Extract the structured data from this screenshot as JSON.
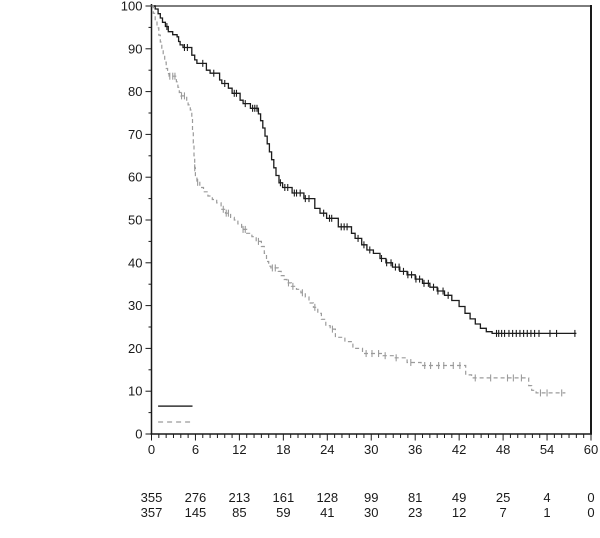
{
  "chart_data": {
    "type": "line",
    "subtype": "kaplan-meier-step-curves",
    "title": "",
    "xlabel": "",
    "ylabel": "",
    "x_axis": {
      "min": 0,
      "max": 60,
      "major_ticks": [
        0,
        6,
        12,
        18,
        24,
        30,
        36,
        42,
        48,
        54,
        60
      ],
      "tick_labels": [
        "0",
        "6",
        "12",
        "18",
        "24",
        "30",
        "36",
        "42",
        "48",
        "54",
        "60"
      ],
      "minor_tick_step": 1
    },
    "y_axis": {
      "min": 0,
      "max": 100,
      "major_ticks": [
        0,
        10,
        20,
        30,
        40,
        50,
        60,
        70,
        80,
        90,
        100
      ],
      "tick_labels": [
        "0",
        "10",
        "20",
        "30",
        "40",
        "50",
        "60",
        "70",
        "80",
        "90",
        "100"
      ],
      "minor_tick_step": 5
    },
    "grid": false,
    "legend": {
      "position": "bottom-left-inside",
      "entries": [
        {
          "series": "series-1",
          "line_style": "solid",
          "color": "#333333"
        },
        {
          "series": "series-2",
          "line_style": "dashed",
          "color": "#9b9b9b"
        }
      ]
    },
    "series": [
      {
        "name": "series-1",
        "line_style": "solid",
        "color": "#1c1c1c",
        "points": [
          [
            0,
            100
          ],
          [
            0.5,
            99.3
          ],
          [
            0.9,
            98.2
          ],
          [
            1.2,
            97.2
          ],
          [
            1.5,
            96.2
          ],
          [
            1.9,
            95.2
          ],
          [
            2.3,
            94.0
          ],
          [
            2.9,
            93.3
          ],
          [
            3.5,
            92.8
          ],
          [
            3.7,
            91.7
          ],
          [
            3.9,
            90.9
          ],
          [
            4.3,
            90.3
          ],
          [
            5.5,
            88.5
          ],
          [
            5.9,
            87.4
          ],
          [
            6.2,
            86.6
          ],
          [
            7.5,
            85.0
          ],
          [
            8.0,
            84.3
          ],
          [
            9.3,
            82.7
          ],
          [
            9.6,
            81.9
          ],
          [
            10.5,
            80.8
          ],
          [
            11.0,
            79.6
          ],
          [
            12.1,
            78.0
          ],
          [
            12.5,
            77.2
          ],
          [
            13.5,
            76.1
          ],
          [
            14.6,
            74.8
          ],
          [
            14.9,
            73.2
          ],
          [
            15.2,
            71.5
          ],
          [
            15.5,
            69.6
          ],
          [
            15.8,
            67.8
          ],
          [
            16.1,
            65.9
          ],
          [
            16.4,
            64.1
          ],
          [
            16.7,
            62.2
          ],
          [
            17.0,
            60.4
          ],
          [
            17.4,
            58.7
          ],
          [
            17.9,
            57.6
          ],
          [
            19.2,
            56.3
          ],
          [
            20.8,
            55.0
          ],
          [
            22.3,
            52.7
          ],
          [
            23.0,
            51.6
          ],
          [
            23.9,
            50.4
          ],
          [
            25.5,
            48.4
          ],
          [
            27.3,
            46.9
          ],
          [
            27.8,
            45.7
          ],
          [
            28.7,
            44.2
          ],
          [
            29.4,
            43.0
          ],
          [
            30.3,
            42.2
          ],
          [
            31.2,
            41.0
          ],
          [
            32.0,
            40.0
          ],
          [
            32.9,
            39.0
          ],
          [
            33.9,
            38.0
          ],
          [
            34.9,
            37.2
          ],
          [
            36.0,
            36.2
          ],
          [
            37.0,
            35.2
          ],
          [
            38.0,
            34.3
          ],
          [
            39.0,
            33.4
          ],
          [
            40.0,
            32.4
          ],
          [
            41.0,
            31.2
          ],
          [
            42.0,
            29.8
          ],
          [
            42.8,
            28.2
          ],
          [
            43.5,
            26.9
          ],
          [
            44.2,
            25.7
          ],
          [
            44.9,
            24.7
          ],
          [
            45.7,
            23.9
          ],
          [
            46.5,
            23.5
          ],
          [
            58.0,
            23.5
          ]
        ],
        "censor_times": [
          2.1,
          4.5,
          4.9,
          7.0,
          8.5,
          10.0,
          11.3,
          11.6,
          12.8,
          13.8,
          14.1,
          14.4,
          17.6,
          18.2,
          18.6,
          19.5,
          19.8,
          20.3,
          21.0,
          21.5,
          23.5,
          24.3,
          24.6,
          25.9,
          26.3,
          26.7,
          28.2,
          29.0,
          29.8,
          31.4,
          32.1,
          32.7,
          33.3,
          33.8,
          34.4,
          35.0,
          35.5,
          36.1,
          36.6,
          37.2,
          37.8,
          38.5,
          39.1,
          39.8,
          40.5,
          47.1,
          47.4,
          47.8,
          48.2,
          48.8,
          49.3,
          49.8,
          50.3,
          50.8,
          51.3,
          51.8,
          52.3,
          52.9,
          54.4,
          55.3,
          57.8
        ]
      },
      {
        "name": "series-2",
        "line_style": "dashed",
        "color": "#9b9b9b",
        "points": [
          [
            0,
            100
          ],
          [
            0.25,
            98.3
          ],
          [
            0.5,
            96.6
          ],
          [
            0.75,
            94.9
          ],
          [
            1.0,
            93.2
          ],
          [
            1.2,
            91.6
          ],
          [
            1.4,
            90.0
          ],
          [
            1.6,
            88.5
          ],
          [
            1.8,
            86.9
          ],
          [
            2.0,
            85.4
          ],
          [
            2.2,
            84.2
          ],
          [
            2.4,
            83.6
          ],
          [
            3.4,
            82.3
          ],
          [
            3.6,
            81.0
          ],
          [
            3.8,
            79.8
          ],
          [
            4.0,
            79.0
          ],
          [
            4.8,
            77.6
          ],
          [
            5.0,
            76.9
          ],
          [
            5.3,
            75.7
          ],
          [
            5.5,
            73.8
          ],
          [
            5.6,
            71.0
          ],
          [
            5.7,
            68.0
          ],
          [
            5.8,
            65.0
          ],
          [
            5.9,
            62.2
          ],
          [
            6.0,
            59.8
          ],
          [
            6.2,
            58.8
          ],
          [
            6.6,
            57.6
          ],
          [
            7.1,
            56.6
          ],
          [
            7.7,
            55.6
          ],
          [
            8.3,
            54.8
          ],
          [
            8.9,
            54.0
          ],
          [
            9.5,
            52.5
          ],
          [
            10.1,
            51.6
          ],
          [
            10.8,
            50.6
          ],
          [
            11.3,
            50.0
          ],
          [
            11.8,
            49.1
          ],
          [
            12.3,
            47.8
          ],
          [
            13.0,
            46.9
          ],
          [
            13.7,
            46.1
          ],
          [
            14.3,
            45.0
          ],
          [
            15.0,
            43.8
          ],
          [
            15.4,
            42.2
          ],
          [
            15.7,
            40.3
          ],
          [
            16.0,
            39.2
          ],
          [
            16.3,
            38.8
          ],
          [
            17.3,
            38.0
          ],
          [
            17.7,
            37.0
          ],
          [
            18.1,
            36.1
          ],
          [
            18.5,
            35.3
          ],
          [
            19.1,
            34.5
          ],
          [
            19.8,
            33.8
          ],
          [
            20.4,
            33.0
          ],
          [
            21.0,
            32.0
          ],
          [
            21.5,
            30.6
          ],
          [
            22.1,
            29.6
          ],
          [
            22.7,
            28.2
          ],
          [
            23.2,
            26.8
          ],
          [
            23.8,
            25.3
          ],
          [
            24.4,
            24.5
          ],
          [
            25.1,
            22.6
          ],
          [
            26.4,
            21.6
          ],
          [
            27.5,
            20.0
          ],
          [
            28.8,
            18.8
          ],
          [
            31.6,
            18.3
          ],
          [
            33.1,
            17.8
          ],
          [
            34.9,
            16.7
          ],
          [
            36.8,
            16.0
          ],
          [
            42.9,
            13.8
          ],
          [
            43.7,
            13.1
          ],
          [
            51.5,
            11.3
          ],
          [
            51.9,
            10.2
          ],
          [
            52.5,
            9.6
          ],
          [
            56.5,
            9.6
          ]
        ],
        "censor_times": [
          2.5,
          2.9,
          3.2,
          4.1,
          4.5,
          5.9,
          6.3,
          9.8,
          10.2,
          10.5,
          12.5,
          12.8,
          14.6,
          16.5,
          16.9,
          18.7,
          19.3,
          20.6,
          22.3,
          24.7,
          29.3,
          30.1,
          31.0,
          31.9,
          33.4,
          35.4,
          37.3,
          38.1,
          39.2,
          39.9,
          41.2,
          42.1,
          44.2,
          46.3,
          48.6,
          49.4,
          50.5,
          53.1,
          54.0,
          56.0
        ]
      }
    ],
    "at_risk_table": {
      "time_points": [
        0,
        6,
        12,
        18,
        24,
        30,
        36,
        42,
        48,
        54,
        60
      ],
      "rows": [
        {
          "series": "series-1",
          "counts": [
            "355",
            "276",
            "213",
            "161",
            "128",
            "99",
            "81",
            "49",
            "25",
            "4",
            "0"
          ]
        },
        {
          "series": "series-2",
          "counts": [
            "357",
            "145",
            "85",
            "59",
            "41",
            "30",
            "23",
            "12",
            "7",
            "1",
            "0"
          ]
        }
      ]
    }
  },
  "colors": {
    "background": "#ffffff",
    "axis": "#1a1a1a",
    "frame_top": "#7d7d7d",
    "frame_right": "#1a1a1a",
    "solid_series": "#1c1c1c",
    "dashed_series": "#9b9b9b",
    "text": "#1a1a1a"
  }
}
